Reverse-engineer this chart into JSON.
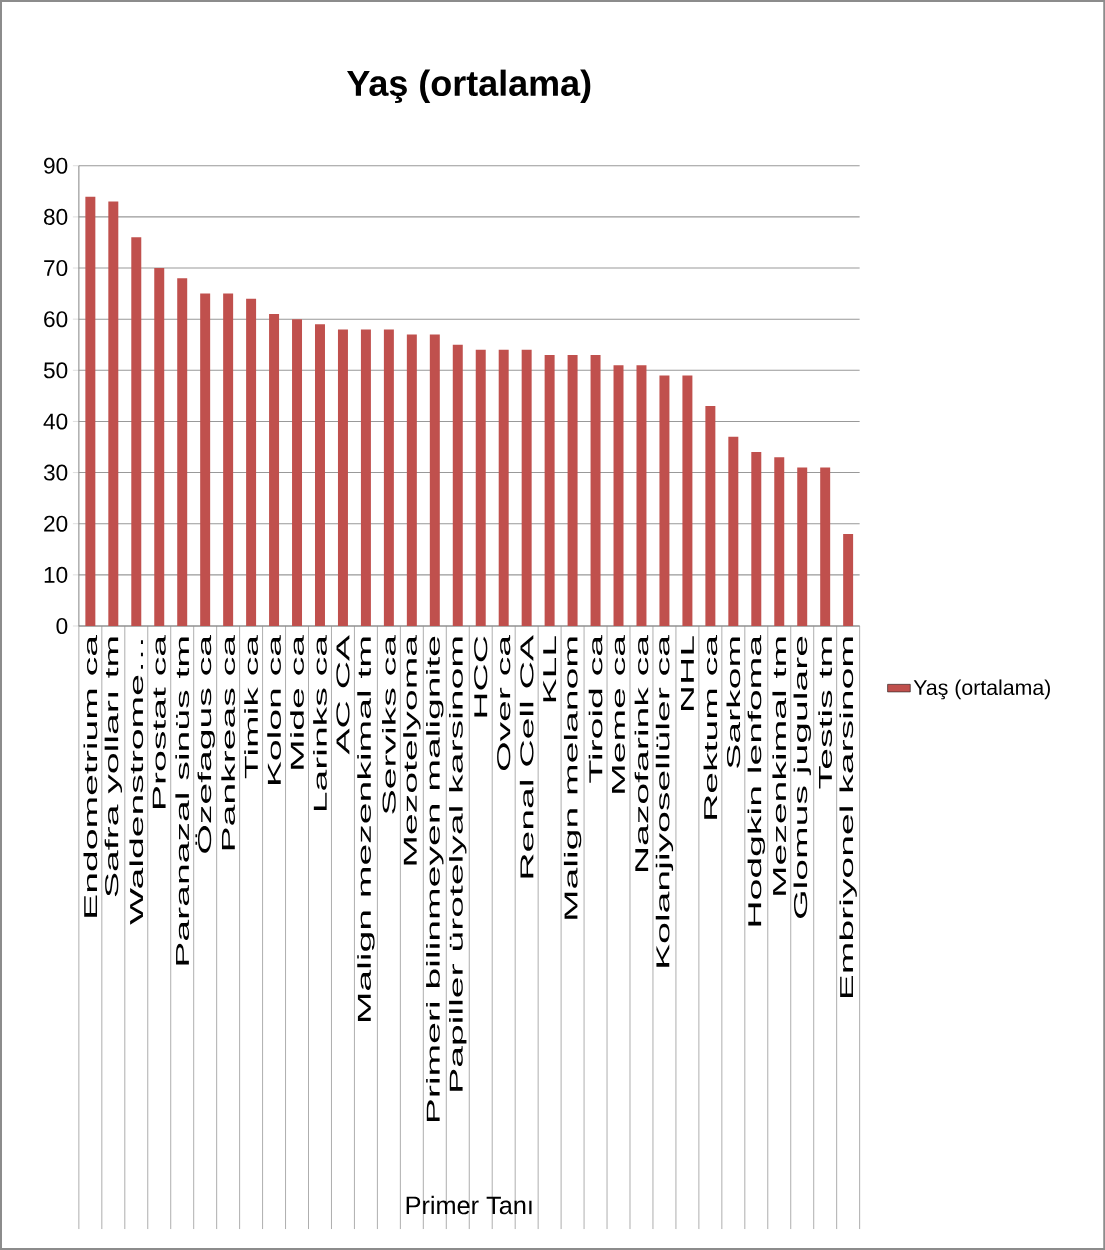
{
  "chart_data": {
    "type": "bar",
    "title": "Yaş (ortalama)",
    "xlabel": "Primer Tanı",
    "categories": [
      "Endometrium ca",
      "Safra yolları tm",
      "Waldenstrome…",
      "Prostat ca",
      "Paranazal sinüs tm",
      "Özefagus ca",
      "Pankreas ca",
      "Timik ca",
      "Kolon ca",
      "Mide ca",
      "Larinks ca",
      "AC CA",
      "Malign mezenkimal tm",
      "Serviks ca",
      "Mezotelyoma",
      "Primeri bilinmeyen malignite",
      "Papiller ürotelyal karsinom",
      "HCC",
      "Over ca",
      "Renal Cell CA",
      "KLL",
      "Malign melanom",
      "Tiroid ca",
      "Meme ca",
      "Nazofarink ca",
      "Kolanjiyosellüler ca",
      "NHL",
      "Rektum ca",
      "Sarkom",
      "Hodgkin lenfoma",
      "Mezenkimal tm",
      "Glomus jugulare",
      "Testis tm",
      "Embriyonel karsinom"
    ],
    "series": [
      {
        "name": "Yaş (ortalama)",
        "color": "#c0504d",
        "values": [
          84,
          83,
          76,
          70,
          68,
          65,
          65,
          64,
          61,
          60,
          59,
          58,
          58,
          58,
          57,
          57,
          55,
          54,
          54,
          54,
          53,
          53,
          53,
          51,
          51,
          49,
          49,
          43,
          37,
          34,
          33,
          31,
          31,
          18
        ]
      }
    ],
    "ylim": [
      0,
      90
    ],
    "yticks": [
      0,
      10,
      20,
      30,
      40,
      50,
      60,
      70,
      80,
      90
    ],
    "grid": "y",
    "legend": "right"
  }
}
